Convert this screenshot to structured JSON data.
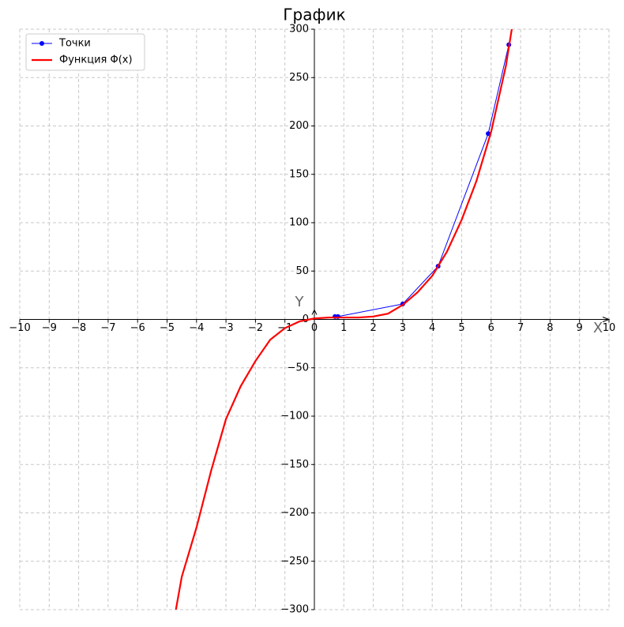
{
  "chart_data": {
    "type": "line",
    "title": "График",
    "x_label": "X",
    "y_label": "Y",
    "xlim": [
      -10,
      10
    ],
    "ylim": [
      -300,
      300
    ],
    "xticks": [
      {
        "value": -10,
        "label": "−10"
      },
      {
        "value": -9,
        "label": "−9"
      },
      {
        "value": -8,
        "label": "−8"
      },
      {
        "value": -7,
        "label": "−7"
      },
      {
        "value": -6,
        "label": "−6"
      },
      {
        "value": -5,
        "label": "−5"
      },
      {
        "value": -4,
        "label": "−4"
      },
      {
        "value": -3,
        "label": "−3"
      },
      {
        "value": -2,
        "label": "−2"
      },
      {
        "value": -1,
        "label": "−1"
      },
      0,
      1,
      2,
      3,
      4,
      5,
      6,
      7,
      8,
      9,
      10
    ],
    "yticks": [
      {
        "value": -300,
        "label": "−300"
      },
      {
        "value": -250,
        "label": "−250"
      },
      {
        "value": -200,
        "label": "−200"
      },
      {
        "value": -150,
        "label": "−150"
      },
      {
        "value": -100,
        "label": "−100"
      },
      {
        "value": -50,
        "label": "−50"
      },
      0,
      50,
      100,
      150,
      200,
      250,
      300
    ],
    "grid": true,
    "legend": "upper-left",
    "series": [
      {
        "name": "Точки",
        "color": "#0000ff",
        "marker": true,
        "x": [
          0.7,
          0.8,
          3.0,
          4.2,
          5.9,
          6.6
        ],
        "values": [
          3,
          3,
          16,
          55,
          192,
          284
        ]
      },
      {
        "name": "Функция Φ(x)",
        "color": "#ff0000",
        "marker": false,
        "x": [
          -4.7,
          -4.5,
          -4,
          -3.5,
          -3,
          -2.5,
          -2,
          -1.5,
          -1,
          -0.5,
          0,
          0.5,
          1,
          1.5,
          2,
          2.5,
          3,
          3.5,
          4,
          4.5,
          5,
          5.5,
          6,
          6.5,
          6.7
        ],
        "values": [
          -300,
          -266,
          -215,
          -156,
          -103,
          -69,
          -43,
          -21,
          -9,
          -2,
          1,
          2,
          2,
          2,
          3,
          6,
          15,
          28,
          45,
          70,
          103,
          143,
          194,
          262,
          300
        ]
      }
    ]
  }
}
